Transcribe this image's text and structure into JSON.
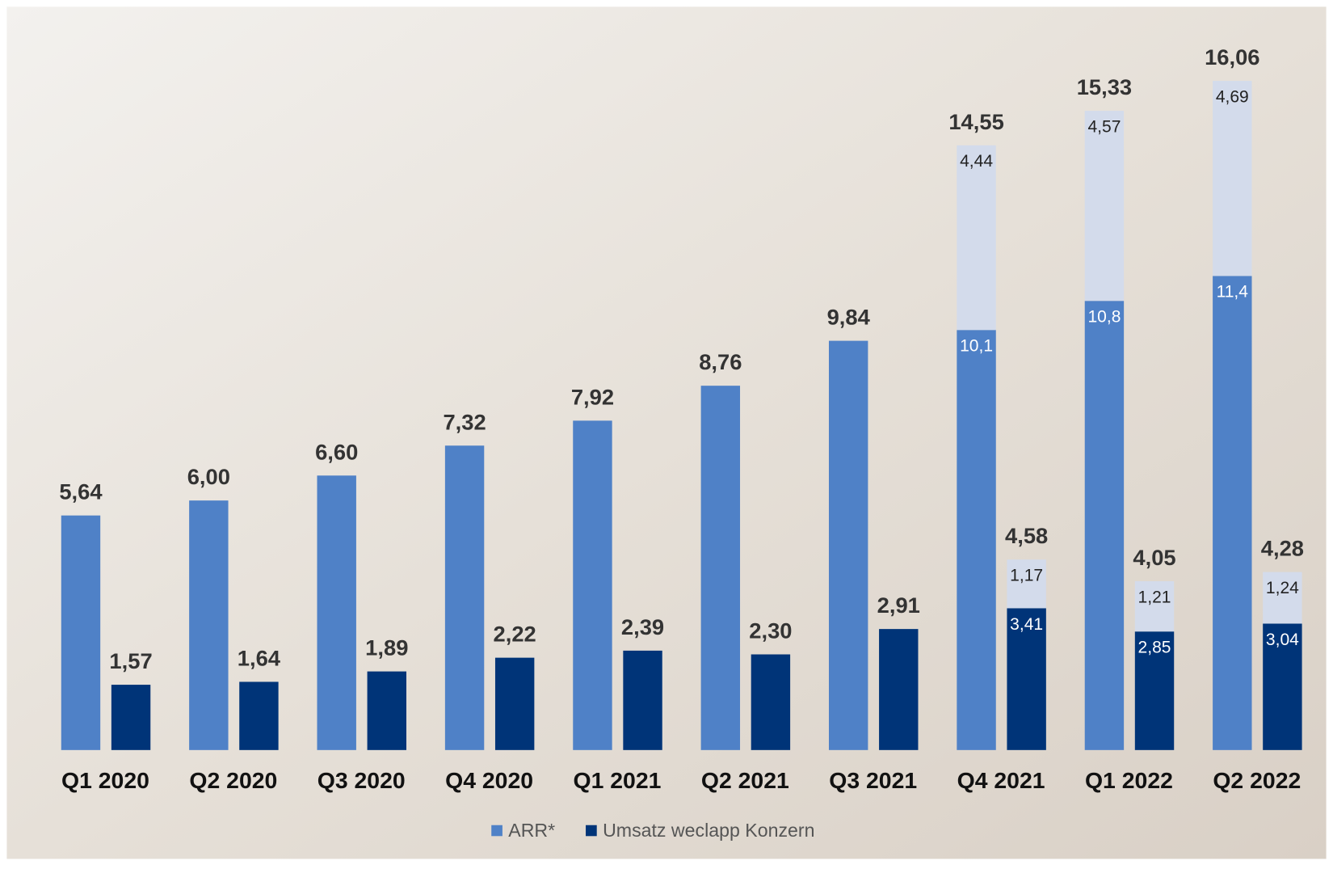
{
  "chart_data": {
    "type": "bar",
    "categories": [
      "Q1 2020",
      "Q2 2020",
      "Q3 2020",
      "Q4 2020",
      "Q1 2021",
      "Q2 2021",
      "Q3 2021",
      "Q4 2021",
      "Q1 2022",
      "Q2 2022"
    ],
    "series": [
      {
        "name": "ARR*",
        "color": "#4f81c7",
        "stack": "arr",
        "values": [
          5.64,
          6.0,
          6.6,
          7.32,
          7.92,
          8.76,
          9.84,
          10.1,
          10.8,
          11.4
        ],
        "value_labels": [
          null,
          null,
          null,
          null,
          null,
          null,
          null,
          "10,1",
          "10,8",
          "11,4"
        ]
      },
      {
        "color": "#d3dbeb",
        "stack": "arr",
        "values": [
          null,
          null,
          null,
          null,
          null,
          null,
          null,
          4.44,
          4.57,
          4.69
        ],
        "value_labels": [
          null,
          null,
          null,
          null,
          null,
          null,
          null,
          "4,44",
          "4,57",
          "4,69"
        ]
      },
      {
        "name": "Umsatz weclapp Konzern",
        "color": "#003478",
        "stack": "rev",
        "values": [
          1.57,
          1.64,
          1.89,
          2.22,
          2.39,
          2.3,
          2.91,
          3.41,
          2.85,
          3.04
        ],
        "value_labels": [
          null,
          null,
          null,
          null,
          null,
          null,
          null,
          "3,41",
          "2,85",
          "3,04"
        ]
      },
      {
        "color": "#d3dbeb",
        "stack": "rev",
        "values": [
          null,
          null,
          null,
          null,
          null,
          null,
          null,
          1.17,
          1.21,
          1.24
        ],
        "value_labels": [
          null,
          null,
          null,
          null,
          null,
          null,
          null,
          "1,17",
          "1,21",
          "1,24"
        ]
      }
    ],
    "totals": {
      "arr": {
        "values": [
          5.64,
          6.0,
          6.6,
          7.32,
          7.92,
          8.76,
          9.84,
          14.55,
          15.33,
          16.06
        ],
        "value_labels": [
          "5,64",
          "6,00",
          "6,60",
          "7,32",
          "7,92",
          "8,76",
          "9,84",
          "14,55",
          "15,33",
          "16,06"
        ]
      },
      "rev": {
        "values": [
          1.57,
          1.64,
          1.89,
          2.22,
          2.39,
          2.3,
          2.91,
          4.58,
          4.05,
          4.28
        ],
        "value_labels": [
          "1,57",
          "1,64",
          "1,89",
          "2,22",
          "2,39",
          "2,30",
          "2,91",
          "4,58",
          "4,05",
          "4,28"
        ]
      }
    },
    "ylim": [
      0,
      17
    ],
    "legend": "bottom"
  }
}
